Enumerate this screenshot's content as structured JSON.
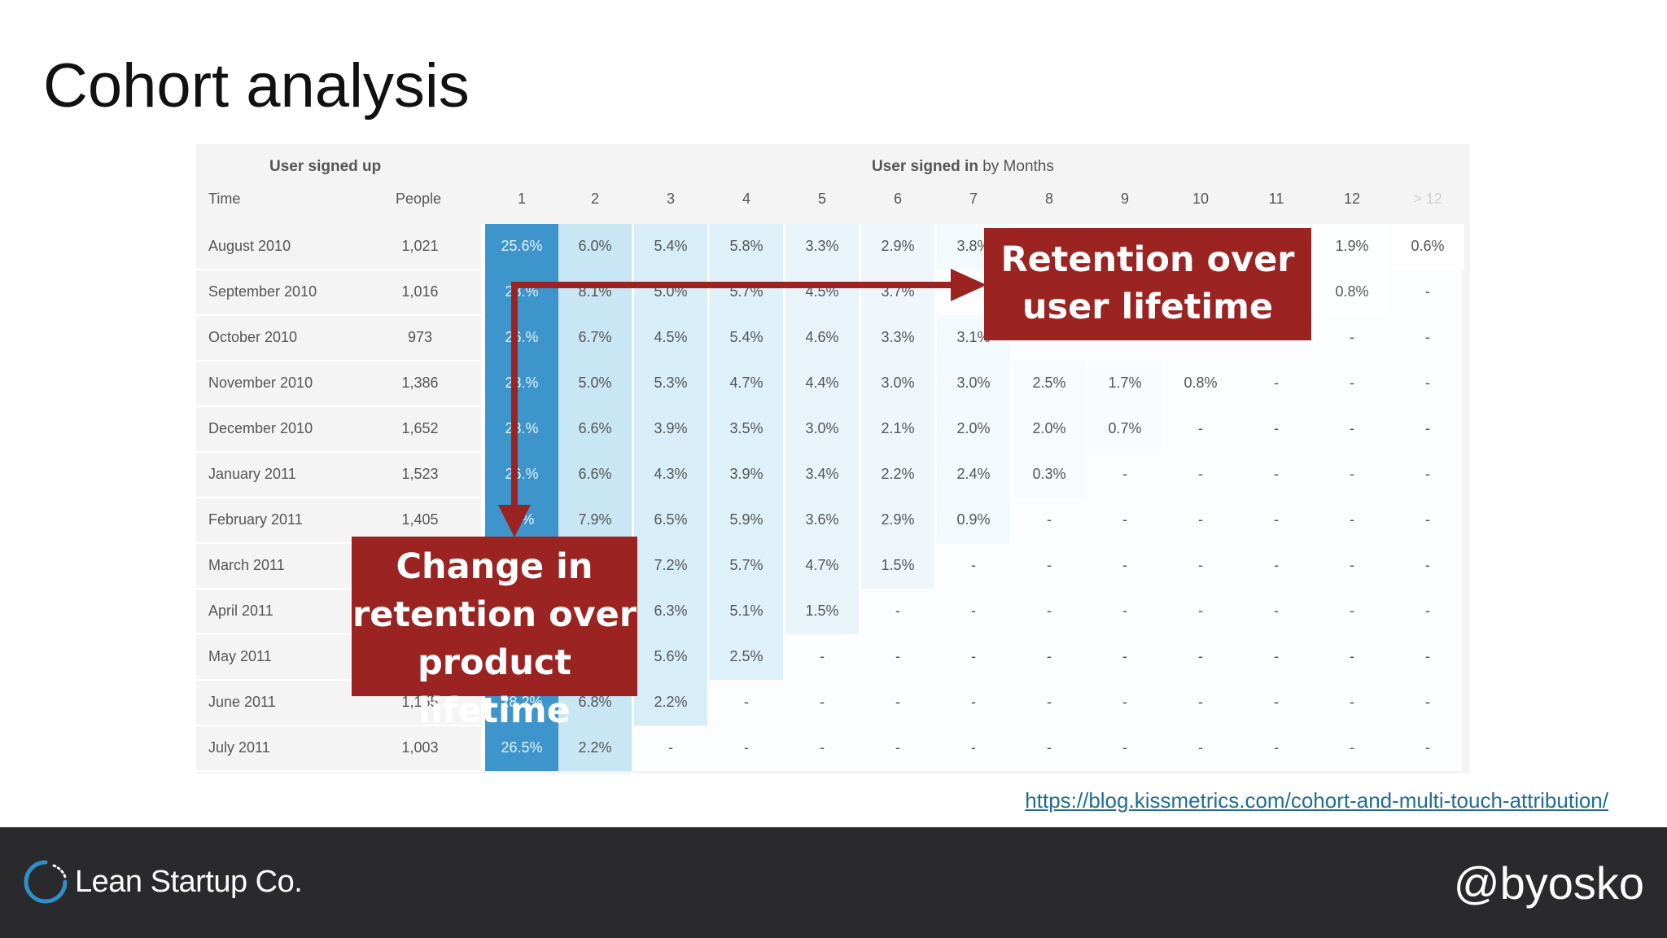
{
  "slide": {
    "title": "Cohort analysis",
    "source_url": "https://blog.kissmetrics.com/cohort-and-multi-touch-attribution/",
    "brand": "Lean Startup Co.",
    "handle": "@byosko"
  },
  "callouts": {
    "horizontal": [
      "Retention over",
      "user lifetime"
    ],
    "vertical": [
      "Change in",
      "retention over",
      "product lifetime"
    ]
  },
  "colors": {
    "callout": "#9b2321",
    "month1": "#3d95cc",
    "footer": "#2a2a2c",
    "link": "#1f6d94"
  },
  "chart_data": {
    "type": "heatmap",
    "header": {
      "group_left": "User signed up",
      "group_right_bold": "User signed in",
      "group_right_rest": "by Months",
      "col_time": "Time",
      "col_people": "People",
      "months": [
        "1",
        "2",
        "3",
        "4",
        "5",
        "6",
        "7",
        "8",
        "9",
        "10",
        "11",
        "12",
        "> 12"
      ]
    },
    "rows": [
      {
        "time": "August 2010",
        "people": "1,021",
        "values": [
          "25.6%",
          "6.0%",
          "5.4%",
          "5.8%",
          "3.3%",
          "2.9%",
          "3.8%",
          "",
          "",
          "",
          "",
          "1.9%",
          "0.6%"
        ]
      },
      {
        "time": "September 2010",
        "people": "1,016",
        "values": [
          "28.%",
          "8.1%",
          "5.0%",
          "5.7%",
          "4.5%",
          "3.7%",
          "",
          "",
          "",
          "",
          "",
          "0.8%",
          "-"
        ]
      },
      {
        "time": "October 2010",
        "people": "973",
        "values": [
          "26.%",
          "6.7%",
          "4.5%",
          "5.4%",
          "4.6%",
          "3.3%",
          "3.1%",
          "",
          "",
          "",
          "",
          "-",
          "-"
        ]
      },
      {
        "time": "November 2010",
        "people": "1,386",
        "values": [
          "28.%",
          "5.0%",
          "5.3%",
          "4.7%",
          "4.4%",
          "3.0%",
          "3.0%",
          "2.5%",
          "1.7%",
          "0.8%",
          "-",
          "-",
          "-"
        ]
      },
      {
        "time": "December 2010",
        "people": "1,652",
        "values": [
          "23.%",
          "6.6%",
          "3.9%",
          "3.5%",
          "3.0%",
          "2.1%",
          "2.0%",
          "2.0%",
          "0.7%",
          "-",
          "-",
          "-",
          "-"
        ]
      },
      {
        "time": "January 2011",
        "people": "1,523",
        "values": [
          "26.%",
          "6.6%",
          "4.3%",
          "3.9%",
          "3.4%",
          "2.2%",
          "2.4%",
          "0.3%",
          "-",
          "-",
          "-",
          "-",
          "-"
        ]
      },
      {
        "time": "February 2011",
        "people": "1,405",
        "values": [
          "2.%",
          "7.9%",
          "6.5%",
          "5.9%",
          "3.6%",
          "2.9%",
          "0.9%",
          "-",
          "-",
          "-",
          "-",
          "-",
          "-"
        ]
      },
      {
        "time": "March 2011",
        "people": "",
        "values": [
          "",
          "",
          "7.2%",
          "5.7%",
          "4.7%",
          "1.5%",
          "-",
          "-",
          "-",
          "-",
          "-",
          "-",
          "-"
        ]
      },
      {
        "time": "April 2011",
        "people": "",
        "values": [
          "",
          "",
          "6.3%",
          "5.1%",
          "1.5%",
          "-",
          "-",
          "-",
          "-",
          "-",
          "-",
          "-",
          "-"
        ]
      },
      {
        "time": "May 2011",
        "people": "",
        "values": [
          "",
          "",
          "5.6%",
          "2.5%",
          "-",
          "-",
          "-",
          "-",
          "-",
          "-",
          "-",
          "-",
          "-"
        ]
      },
      {
        "time": "June 2011",
        "people": "1,155",
        "values": [
          "28.2%",
          "6.8%",
          "2.2%",
          "-",
          "-",
          "-",
          "-",
          "-",
          "-",
          "-",
          "-",
          "-",
          "-"
        ]
      },
      {
        "time": "July 2011",
        "people": "1,003",
        "values": [
          "26.5%",
          "2.2%",
          "-",
          "-",
          "-",
          "-",
          "-",
          "-",
          "-",
          "-",
          "-",
          "-",
          "-"
        ]
      }
    ]
  }
}
